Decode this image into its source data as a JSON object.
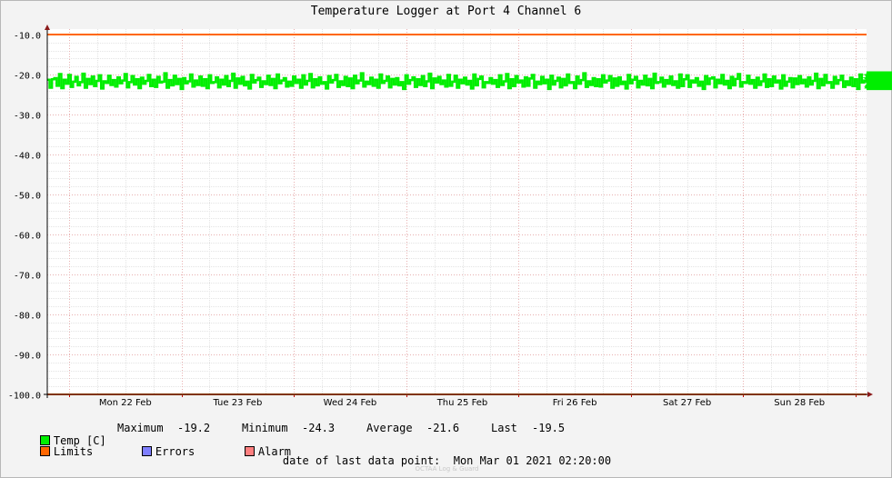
{
  "chart_data": {
    "type": "line",
    "title": "Temperature Logger at Port 4 Channel 6",
    "xlabel": "",
    "ylabel": "",
    "y_ticks": [
      "-10.0",
      "-20.0",
      "-30.0",
      "-40.0",
      "-50.0",
      "-60.0",
      "-70.0",
      "-80.0",
      "-90.0",
      "-100.0"
    ],
    "ylim": [
      -100,
      -10
    ],
    "x_day_labels": [
      "Mon 22 Feb",
      "Tue 23 Feb",
      "Wed 24 Feb",
      "Thu 25 Feb",
      "Fri 26 Feb",
      "Sat 27 Feb",
      "Sun 28 Feb"
    ],
    "x_range": [
      "2021-02-21 19:20",
      "2021-03-01 02:20"
    ],
    "grid": true,
    "series": [
      {
        "name": "Temp [C]",
        "color": "#00ee00",
        "description_values": {
          "min": -24.3,
          "max": -19.2,
          "avg": -21.6,
          "last": -19.5
        },
        "x_start": "2021-02-21 19:20",
        "x_step_minutes": 30,
        "values": [
          -21.3,
          -23.3,
          -21.2,
          -20.9,
          -22.8,
          -19.9,
          -23.4,
          -21.3,
          -22.3,
          -20.1,
          -23.1,
          -21.8,
          -20.6,
          -22.7,
          -21.9,
          -19.8,
          -23.3,
          -21.1,
          -22.4,
          -20.5,
          -22.9,
          -21.6,
          -20.2,
          -23.5,
          -21.7,
          -22.1,
          -20.3,
          -22.6,
          -21.4,
          -23.0,
          -20.7,
          -22.2,
          -21.5,
          -19.9,
          -23.2,
          -21.9,
          -20.4,
          -22.5,
          -21.2,
          -23.4,
          -20.8,
          -22.3,
          -21.6,
          -20.1,
          -22.9,
          -21.3,
          -23.1,
          -20.6,
          -22.0,
          -21.8,
          -19.7,
          -23.3,
          -21.4,
          -22.7,
          -20.3,
          -22.4,
          -21.1,
          -23.6,
          -20.9,
          -22.2,
          -21.7,
          -20.0,
          -23.0,
          -21.5,
          -22.6,
          -20.5,
          -22.8,
          -21.2,
          -23.4,
          -20.2,
          -22.1,
          -21.9,
          -20.7,
          -23.2,
          -21.3,
          -22.5,
          -20.4,
          -22.9,
          -21.6,
          -19.8,
          -23.3,
          -21.0,
          -22.3,
          -20.6,
          -22.7,
          -21.8,
          -23.5,
          -20.1,
          -22.0,
          -21.4,
          -20.8,
          -23.1,
          -21.7,
          -22.4,
          -20.3,
          -22.6,
          -21.1,
          -23.4,
          -20.0,
          -22.2,
          -21.5,
          -20.9,
          -23.0,
          -21.8,
          -22.8,
          -20.5,
          -22.1,
          -21.3,
          -23.3,
          -20.2,
          -22.5,
          -21.6,
          -19.9,
          -23.2,
          -21.2,
          -22.7,
          -20.7,
          -22.3,
          -21.9,
          -23.5,
          -20.4,
          -22.0,
          -21.4,
          -20.1,
          -23.1,
          -21.7,
          -22.6,
          -20.6,
          -22.9,
          -21.0,
          -23.4,
          -20.3,
          -22.2,
          -21.5,
          -19.7,
          -23.0,
          -21.8,
          -22.4,
          -20.8,
          -22.8,
          -21.3,
          -23.3,
          -20.0,
          -22.1,
          -21.6,
          -20.5,
          -23.2,
          -21.1,
          -22.5,
          -20.9,
          -22.7,
          -21.9,
          -23.6,
          -20.2,
          -22.3,
          -21.4,
          -20.7,
          -23.1,
          -21.2,
          -22.6,
          -20.4,
          -22.9,
          -21.7,
          -19.8,
          -23.4,
          -21.0,
          -22.0,
          -20.6,
          -22.4,
          -21.5,
          -23.0,
          -20.1,
          -22.8,
          -21.8,
          -20.3,
          -23.3,
          -21.3,
          -22.2,
          -20.8,
          -22.5,
          -21.6,
          -23.5,
          -20.0,
          -22.7,
          -21.1,
          -20.5,
          -23.2,
          -21.9,
          -22.1,
          -20.9,
          -22.3,
          -21.4,
          -23.1,
          -20.2,
          -22.6,
          -21.7,
          -19.9,
          -23.4,
          -21.2,
          -22.9,
          -20.4,
          -22.0,
          -21.5,
          -23.0,
          -20.7,
          -22.8,
          -21.0,
          -20.1,
          -23.3,
          -21.8,
          -22.4,
          -20.6,
          -22.2,
          -21.3,
          -23.6,
          -20.3,
          -22.5,
          -21.6,
          -20.8,
          -23.2,
          -21.1,
          -22.7,
          -20.0,
          -22.1,
          -21.9,
          -23.4,
          -20.5,
          -22.3,
          -21.4,
          -19.7,
          -23.1,
          -21.7,
          -22.6,
          -20.9,
          -22.9,
          -21.2,
          -23.0,
          -20.2,
          -22.0,
          -21.5,
          -20.4,
          -23.3,
          -21.0,
          -22.8,
          -20.7,
          -22.4,
          -21.8,
          -23.5,
          -20.1,
          -22.2,
          -21.3,
          -20.6,
          -23.2,
          -21.6,
          -22.5,
          -20.3,
          -22.7,
          -21.1,
          -23.4,
          -19.8,
          -22.1,
          -21.9,
          -20.8,
          -23.0,
          -21.4,
          -22.3,
          -20.5,
          -22.6,
          -21.7,
          -23.3,
          -20.0,
          -22.9,
          -21.2,
          -20.2,
          -23.1,
          -21.5,
          -22.0,
          -20.9,
          -22.8,
          -21.8,
          -23.6,
          -20.4,
          -22.4,
          -21.0,
          -20.7,
          -23.2,
          -21.3,
          -22.2,
          -20.1,
          -22.5,
          -21.6,
          -23.4,
          -20.6,
          -22.7,
          -21.1,
          -19.9,
          -23.0,
          -21.9,
          -22.1,
          -20.3,
          -22.3,
          -21.4,
          -23.3,
          -20.8,
          -22.6,
          -21.7,
          -20.0,
          -23.1,
          -21.2,
          -22.9,
          -20.5,
          -22.0,
          -21.5,
          -23.5,
          -20.2,
          -22.8,
          -21.8,
          -20.9,
          -23.2,
          -21.0,
          -22.4,
          -20.4,
          -22.2,
          -21.3,
          -23.0,
          -20.7,
          -22.5,
          -21.6,
          -19.8,
          -23.4,
          -21.1,
          -22.7,
          -20.1,
          -22.1,
          -21.9,
          -23.3,
          -20.6,
          -22.3,
          -21.4,
          -20.3,
          -23.1,
          -21.7,
          -22.6,
          -20.8,
          -22.9,
          -21.2,
          -23.6,
          -20.0,
          -22.0,
          -21.5,
          -20.5,
          -23.2,
          -21.8,
          -22.8,
          -20.2,
          -22.4,
          -21.0,
          -23.4,
          -20.9,
          -22.2,
          -21.3,
          -19.7,
          -23.0,
          -21.6,
          -22.5,
          -20.4,
          -22.7,
          -21.1,
          -23.3,
          -20.7,
          -22.1,
          -21.9,
          -20.1,
          -23.1,
          -21.4,
          -22.3,
          -20.6,
          -22.6,
          -21.7,
          -23.5,
          -20.3,
          -22.9,
          -21.2,
          -20.8,
          -23.2,
          -21.5,
          -22.0,
          -20.0,
          -22.8,
          -21.8,
          -23.0,
          -20.5,
          -22.4,
          -21.0,
          -19.9,
          -23.4,
          -21.3,
          -22.2,
          -20.2,
          -22.5,
          -21.6,
          -23.3,
          -20.9,
          -22.7,
          -21.1,
          -20.4,
          -23.1,
          -21.9,
          -22.1,
          -20.7,
          -22.3,
          -21.4,
          -23.6,
          -20.1,
          -22.6,
          -21.7,
          -20.6,
          -23.2,
          -21.2,
          -22.9,
          -20.3,
          -22.0,
          -21.5,
          -23.4,
          -20.8,
          -22.8,
          -21.8,
          -19.8,
          -23.0,
          -21.0,
          -22.4,
          -20.0,
          -22.2,
          -21.3,
          -23.3,
          -20.5,
          -22.5,
          -21.6,
          -20.2,
          -23.1,
          -21.1,
          -22.7,
          -20.9,
          -22.1,
          -21.9,
          -23.5,
          -20.4,
          -22.3,
          -21.4,
          -20.7,
          -23.2,
          -21.7,
          -22.6,
          -20.1,
          -22.9,
          -21.2,
          -23.0,
          -20.6,
          -22.0,
          -21.5,
          -19.7,
          -23.4,
          -21.8,
          -22.8,
          -20.3,
          -22.4,
          -21.0,
          -23.3,
          -20.8,
          -22.2,
          -21.3,
          -20.0,
          -23.1,
          -21.6,
          -22.5,
          -20.5,
          -22.7,
          -21.1,
          -23.6,
          -20.2,
          -22.1,
          -21.9,
          -20.9,
          -23.2,
          -21.4,
          -22.3,
          -20.4,
          -22.6,
          -21.7,
          -23.4,
          -20.7,
          -22.9,
          -21.2,
          -19.9,
          -23.0,
          -21.5,
          -22.0,
          -20.1,
          -22.8,
          -21.8,
          -23.3,
          -20.6,
          -22.4,
          -21.0,
          -20.3,
          -23.1,
          -21.3,
          -22.2,
          -20.8,
          -22.5,
          -21.6,
          -23.5,
          -20.0,
          -22.7,
          -21.1,
          -20.5,
          -23.2,
          -21.9,
          -22.1,
          -20.2,
          -22.3,
          -21.4,
          -23.4,
          -20.9,
          -22.6,
          -21.7,
          -19.8,
          -23.0,
          -21.2,
          -22.9,
          -20.4,
          -22.0,
          -21.5,
          -23.3,
          -20.7,
          -22.8,
          -21.8,
          -20.1,
          -23.1,
          -21.0,
          -22.4,
          -20.6,
          -22.2,
          -21.3,
          -23.6,
          -20.3,
          -22.5,
          -21.6,
          -20.8,
          -23.2,
          -21.1,
          -22.7,
          -20.0,
          -22.1,
          -21.9,
          -23.4,
          -20.5,
          -22.3,
          -21.4,
          -19.7,
          -23.0,
          -21.7,
          -22.6,
          -20.9,
          -22.9,
          -21.2,
          -23.3,
          -20.2,
          -22.0,
          -21.5,
          -20.4,
          -23.1,
          -21.8,
          -22.8,
          -20.7,
          -22.4,
          -21.0,
          -23.5,
          -20.1,
          -22.2,
          -21.3,
          -20.6,
          -23.2,
          -21.6,
          -22.5,
          -20.3,
          -22.7,
          -21.1,
          -23.4,
          -19.9,
          -22.1,
          -21.9,
          -20.8,
          -23.0,
          -21.4,
          -22.3,
          -20.5,
          -22.6,
          -21.7,
          -23.3,
          -20.0,
          -22.9,
          -21.2,
          -20.2,
          -23.1,
          -21.5,
          -22.0,
          -20.9,
          -22.8,
          -21.8,
          -23.6,
          -20.4,
          -22.4,
          -21.0,
          -20.7,
          -23.2,
          -21.3,
          -22.2,
          -20.1,
          -22.5,
          -21.6,
          -23.4,
          -20.6,
          -22.7,
          -21.1,
          -19.8,
          -23.0,
          -21.9,
          -22.1,
          -20.3,
          -22.3,
          -21.4,
          -23.3,
          -20.8,
          -22.6,
          -21.7,
          -20.0,
          -22.2,
          -20.4,
          -19.5
        ]
      },
      {
        "name": "Limits",
        "color": "#ff6600",
        "values": [
          -10.0,
          -100.0
        ]
      }
    ]
  },
  "legend": {
    "temp": {
      "label": "Temp [C]",
      "color": "#00ee00"
    },
    "stats": {
      "max_label": "Maximum",
      "max_value": "-19.2",
      "min_label": "Minimum",
      "min_value": "-24.3",
      "avg_label": "Average",
      "avg_value": "-21.6",
      "last_label": "Last",
      "last_value": "-19.5"
    },
    "limits": {
      "label": "Limits",
      "color": "#ff6600"
    },
    "errors": {
      "label": "Errors",
      "color": "#7f7fff"
    },
    "alarm": {
      "label": "Alarm",
      "color": "#ff7f7f"
    }
  },
  "footer": {
    "last_point_label": "date of last data point:",
    "last_point_value": "Mon Mar 01 2021 02:20:00"
  },
  "watermark": "OCTAA Log & Guard"
}
